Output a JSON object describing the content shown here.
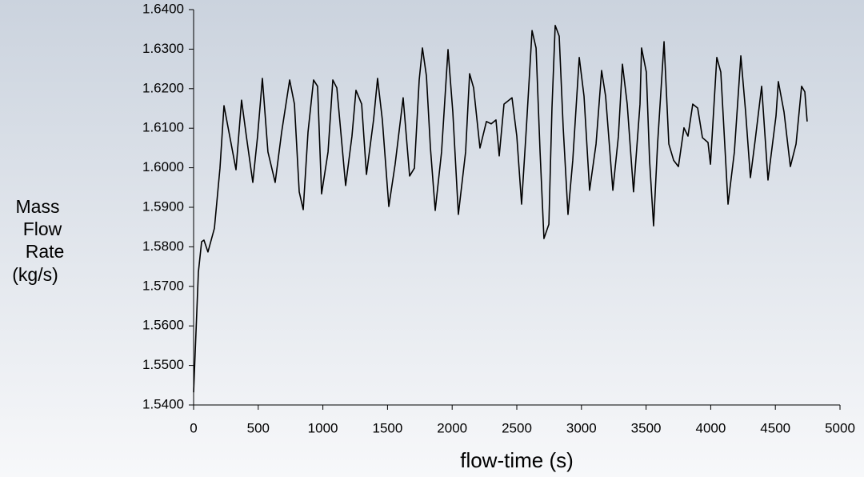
{
  "chart_data": {
    "type": "line",
    "ylabel": [
      "Mass",
      "Flow",
      "Rate",
      "(kg/s)"
    ],
    "xlabel": "flow-time (s)",
    "color": "#000000",
    "x": [
      0,
      37,
      62,
      80,
      111,
      161,
      204,
      235,
      285,
      328,
      371,
      408,
      458,
      495,
      532,
      575,
      631,
      681,
      743,
      780,
      817,
      848,
      885,
      928,
      959,
      990,
      1040,
      1077,
      1108,
      1176,
      1225,
      1256,
      1300,
      1337,
      1392,
      1423,
      1460,
      1510,
      1559,
      1621,
      1671,
      1708,
      1745,
      1770,
      1801,
      1832,
      1869,
      1918,
      1968,
      2005,
      2048,
      2104,
      2135,
      2166,
      2215,
      2265,
      2302,
      2339,
      2364,
      2401,
      2463,
      2500,
      2537,
      2574,
      2618,
      2649,
      2680,
      2710,
      2748,
      2772,
      2797,
      2828,
      2859,
      2896,
      2933,
      2983,
      3020,
      3063,
      3113,
      3156,
      3187,
      3243,
      3286,
      3317,
      3354,
      3403,
      3453,
      3465,
      3502,
      3527,
      3558,
      3589,
      3639,
      3676,
      3713,
      3750,
      3793,
      3824,
      3861,
      3899,
      3936,
      3979,
      3998,
      4047,
      4078,
      4134,
      4183,
      4233,
      4270,
      4307,
      4344,
      4394,
      4443,
      4505,
      4523,
      4567,
      4616,
      4660,
      4703,
      4728,
      4746
    ],
    "values": [
      1.5432,
      1.5736,
      1.5813,
      1.5817,
      1.5787,
      1.5847,
      1.5999,
      1.6157,
      1.607,
      1.5995,
      1.6171,
      1.608,
      1.5963,
      1.608,
      1.6226,
      1.604,
      1.5963,
      1.609,
      1.6222,
      1.6161,
      1.5939,
      1.5894,
      1.609,
      1.6222,
      1.6206,
      1.5934,
      1.604,
      1.6222,
      1.6202,
      1.5955,
      1.608,
      1.6196,
      1.6161,
      1.5983,
      1.6121,
      1.6226,
      1.6121,
      1.5902,
      1.6009,
      1.6177,
      1.5979,
      1.5999,
      1.6222,
      1.6303,
      1.6232,
      1.605,
      1.5892,
      1.604,
      1.6299,
      1.6141,
      1.5882,
      1.604,
      1.6238,
      1.6202,
      1.605,
      1.6117,
      1.6111,
      1.6121,
      1.603,
      1.6161,
      1.6177,
      1.608,
      1.5908,
      1.6101,
      1.6347,
      1.6303,
      1.604,
      1.5821,
      1.5857,
      1.6151,
      1.636,
      1.6333,
      1.6101,
      1.5882,
      1.6019,
      1.6279,
      1.6181,
      1.5943,
      1.606,
      1.6246,
      1.6181,
      1.5943,
      1.608,
      1.6262,
      1.6161,
      1.5939,
      1.6161,
      1.6303,
      1.6242,
      1.6019,
      1.5853,
      1.606,
      1.6319,
      1.606,
      1.6019,
      1.6003,
      1.6101,
      1.608,
      1.6161,
      1.6151,
      1.6076,
      1.6064,
      1.6009,
      1.6279,
      1.6242,
      1.5908,
      1.604,
      1.6283,
      1.6141,
      1.5975,
      1.607,
      1.6206,
      1.5969,
      1.6131,
      1.6218,
      1.6141,
      1.6003,
      1.606,
      1.6206,
      1.6192,
      1.6117
    ],
    "xlim": [
      0,
      5000
    ],
    "xticks": [
      0,
      500,
      1000,
      1500,
      2000,
      2500,
      3000,
      3500,
      4000,
      4500,
      5000
    ],
    "ylim": [
      1.54,
      1.64
    ],
    "yticks": [
      {
        "value": 1.54,
        "label": "1.5400"
      },
      {
        "value": 1.55,
        "label": "1.5500"
      },
      {
        "value": 1.56,
        "label": "1.5600"
      },
      {
        "value": 1.57,
        "label": "1.5700"
      },
      {
        "value": 1.58,
        "label": "1.5800"
      },
      {
        "value": 1.59,
        "label": "1.5900"
      },
      {
        "value": 1.6,
        "label": "1.6000"
      },
      {
        "value": 1.61,
        "label": "1.6100"
      },
      {
        "value": 1.62,
        "label": "1.6200"
      },
      {
        "value": 1.63,
        "label": "1.6300"
      },
      {
        "value": 1.64,
        "label": "1.6400"
      }
    ],
    "grid": false
  }
}
